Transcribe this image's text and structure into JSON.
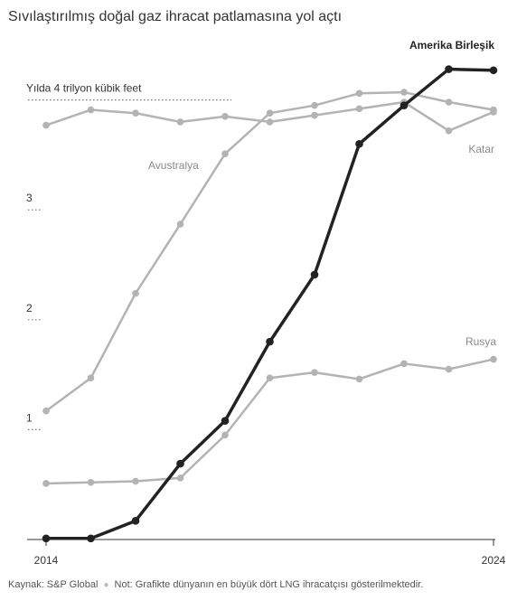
{
  "title": "Sıvılaştırılmış doğal gaz ihracat patlamasına yol açtı",
  "footer": {
    "source": "Kaynak: S&P Global",
    "note": "Not: Grafikte dünyanın en büyük dört LNG ihracatçısı gösterilmektedir."
  },
  "chart_data": {
    "type": "line",
    "title": "Sıvılaştırılmış doğal gaz ihracat patlamasına yol açtı",
    "x": [
      2014,
      2015,
      2016,
      2017,
      2018,
      2019,
      2020,
      2021,
      2022,
      2023,
      2024
    ],
    "x_tick_labels": [
      "2014",
      "2024"
    ],
    "y_ticks": [
      1,
      2,
      3,
      4
    ],
    "y_tick_labels": [
      "1",
      "2",
      "3",
      "Yılda 4 trilyon kübik feet"
    ],
    "ylim": [
      0,
      4.1
    ],
    "grid": false,
    "series": [
      {
        "name": "Amerika Birleşik",
        "color": "#222222",
        "values": [
          0.01,
          0.01,
          0.17,
          0.69,
          1.08,
          1.8,
          2.41,
          3.6,
          3.95,
          4.28,
          4.27
        ]
      },
      {
        "name": "Avustralya",
        "color": "#b3b3b3",
        "values": [
          1.17,
          1.47,
          2.24,
          2.87,
          3.51,
          3.88,
          3.95,
          4.06,
          4.07,
          3.98,
          3.91
        ]
      },
      {
        "name": "Katar",
        "color": "#b3b3b3",
        "values": [
          3.77,
          3.91,
          3.88,
          3.8,
          3.85,
          3.8,
          3.86,
          3.92,
          3.98,
          3.72,
          3.89
        ]
      },
      {
        "name": "Rusya",
        "color": "#b3b3b3",
        "values": [
          0.51,
          0.52,
          0.53,
          0.56,
          0.95,
          1.47,
          1.52,
          1.46,
          1.6,
          1.55,
          1.64
        ]
      }
    ]
  }
}
